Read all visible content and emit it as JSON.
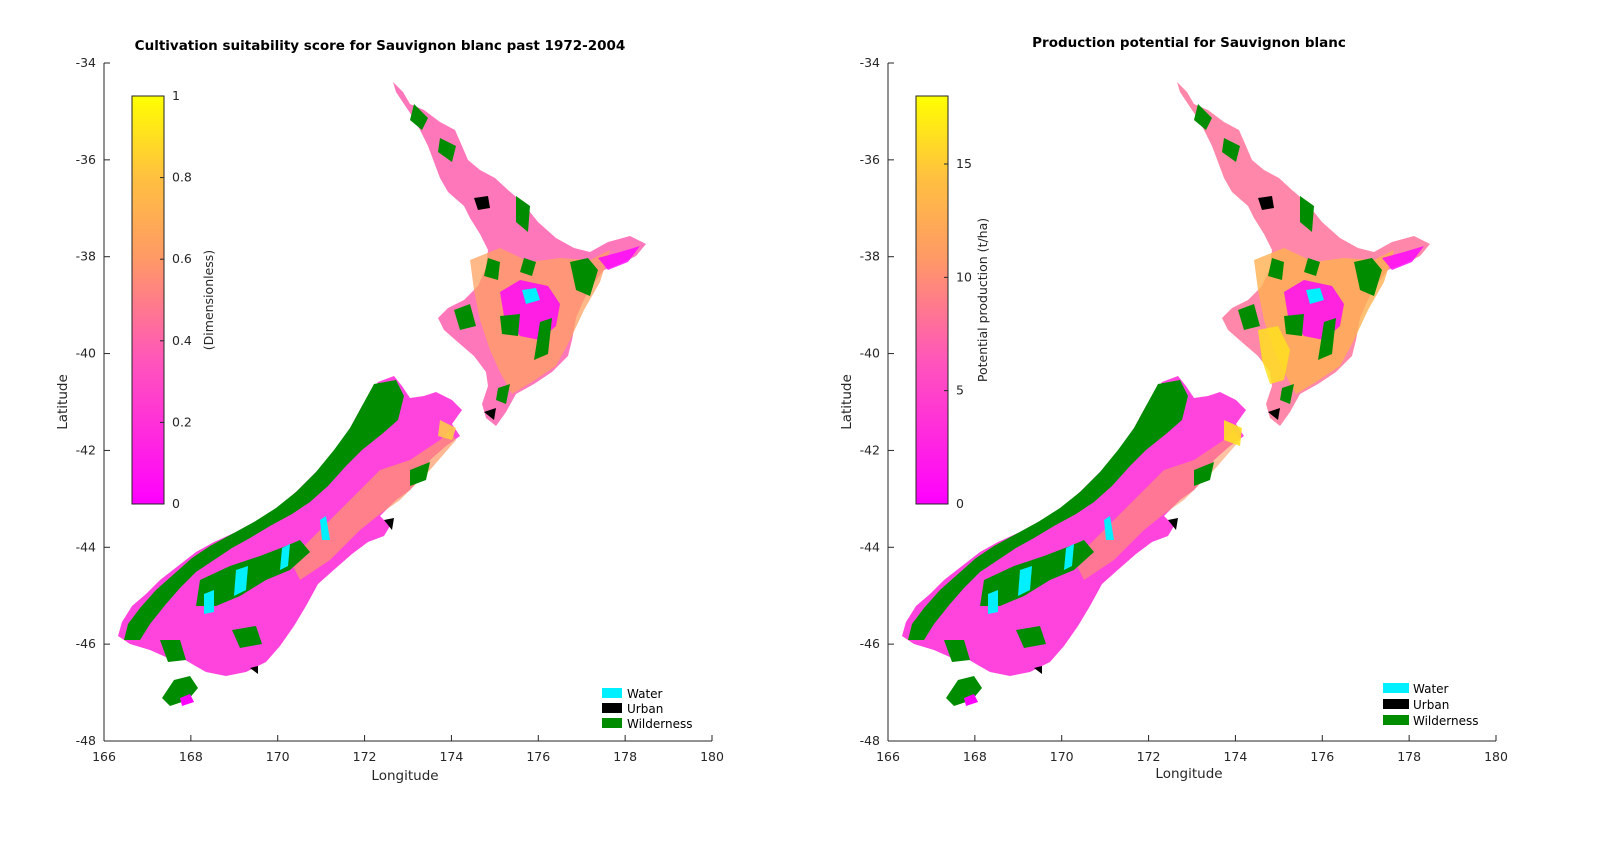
{
  "colors": {
    "water": "#00f0ff",
    "urban": "#000000",
    "wilderness": "#008c00",
    "cmap_low": "#ff00ff",
    "cmap_mid": "#ff9966",
    "cmap_high": "#ffff00"
  },
  "chart_data": [
    {
      "type": "heatmap",
      "title": "Cultivation suitability score for Sauvignon blanc past 1972-2004",
      "xlabel": "Longitude",
      "ylabel": "Latitude",
      "xlim": [
        166,
        180
      ],
      "ylim": [
        -48,
        -34
      ],
      "xticks": [
        "166",
        "168",
        "170",
        "172",
        "174",
        "176",
        "178",
        "180"
      ],
      "yticks": [
        "-34",
        "-36",
        "-38",
        "-40",
        "-42",
        "-44",
        "-46",
        "-48"
      ],
      "colorbar": {
        "label": "(Dimensionless)",
        "range": [
          0,
          1
        ],
        "ticks": [
          {
            "value": 0,
            "label": "0"
          },
          {
            "value": 0.2,
            "label": "0.2"
          },
          {
            "value": 0.4,
            "label": "0.4"
          },
          {
            "value": 0.6,
            "label": "0.6"
          },
          {
            "value": 0.8,
            "label": "0.8"
          },
          {
            "value": 1,
            "label": "1"
          }
        ]
      },
      "legend": [
        "Water",
        "Urban",
        "Wilderness"
      ]
    },
    {
      "type": "heatmap",
      "title": "Production potential for Sauvignon blanc",
      "xlabel": "Longitude",
      "ylabel": "Latitude",
      "xlim": [
        166,
        180
      ],
      "ylim": [
        -48,
        -34
      ],
      "xticks": [
        "166",
        "168",
        "170",
        "172",
        "174",
        "176",
        "178",
        "180"
      ],
      "yticks": [
        "-34",
        "-36",
        "-38",
        "-40",
        "-42",
        "-44",
        "-46",
        "-48"
      ],
      "colorbar": {
        "label": "Potential production (t/ha)",
        "range": [
          0,
          18
        ],
        "ticks": [
          {
            "value": 0,
            "label": "0"
          },
          {
            "value": 5,
            "label": "5"
          },
          {
            "value": 10,
            "label": "10"
          },
          {
            "value": 15,
            "label": "15"
          }
        ]
      },
      "legend": [
        "Water",
        "Urban",
        "Wilderness"
      ]
    }
  ]
}
